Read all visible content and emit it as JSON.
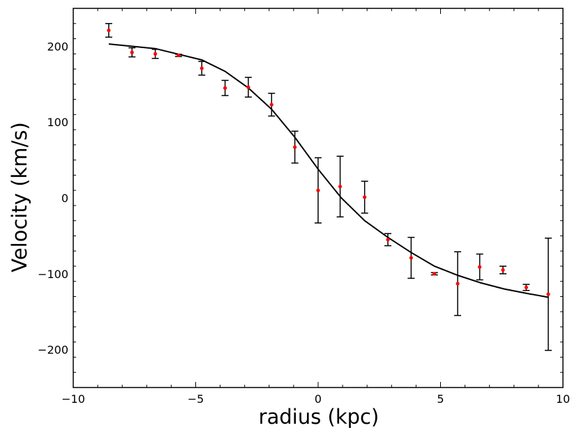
{
  "chart_data": {
    "type": "scatter",
    "title": "",
    "xlabel": "radius (kpc)",
    "ylabel": "Velocity (km/s)",
    "xlim": [
      -10,
      10
    ],
    "ylim": [
      -250,
      250
    ],
    "grid": false,
    "x_ticks": [
      -10,
      -5,
      0,
      5,
      10
    ],
    "x_tick_labels": [
      "−10",
      "−5",
      "0",
      "5",
      "10"
    ],
    "y_ticks": [
      -200,
      -100,
      0,
      100,
      200
    ],
    "y_tick_labels": [
      "−200",
      "−100",
      "0",
      "100",
      "200"
    ],
    "colors": {
      "points": "#ff0000",
      "errorbars": "#000000",
      "model": "#000000"
    },
    "series": [
      {
        "type": "errorbar-scatter",
        "x": [
          -8.55,
          -7.6,
          -6.65,
          -5.7,
          -4.75,
          -3.8,
          -2.85,
          -1.9,
          -0.95,
          0.0,
          0.9,
          1.9,
          2.85,
          3.8,
          4.75,
          5.7,
          6.6,
          7.55,
          8.5,
          9.4
        ],
        "y": [
          221,
          192,
          190,
          188,
          171,
          145,
          146,
          123,
          67,
          10,
          15,
          1,
          -55,
          -79,
          -100,
          -113,
          -91,
          -95,
          -118,
          -127
        ],
        "err": [
          9,
          6,
          6,
          1.5,
          9,
          10,
          13,
          15,
          21,
          43,
          40,
          21,
          8,
          27,
          1.5,
          42,
          17,
          5,
          4,
          74
        ]
      },
      {
        "type": "line",
        "x": [
          -8.55,
          -6.65,
          -4.75,
          -3.8,
          -2.85,
          -1.9,
          -0.95,
          0.0,
          0.95,
          1.9,
          2.85,
          3.8,
          4.75,
          5.7,
          6.65,
          7.6,
          8.55,
          9.4
        ],
        "y": [
          203,
          197,
          182,
          167,
          145,
          117,
          80,
          38,
          0,
          -30,
          -52,
          -72,
          -90,
          -102,
          -112,
          -120,
          -126,
          -131
        ]
      }
    ]
  }
}
